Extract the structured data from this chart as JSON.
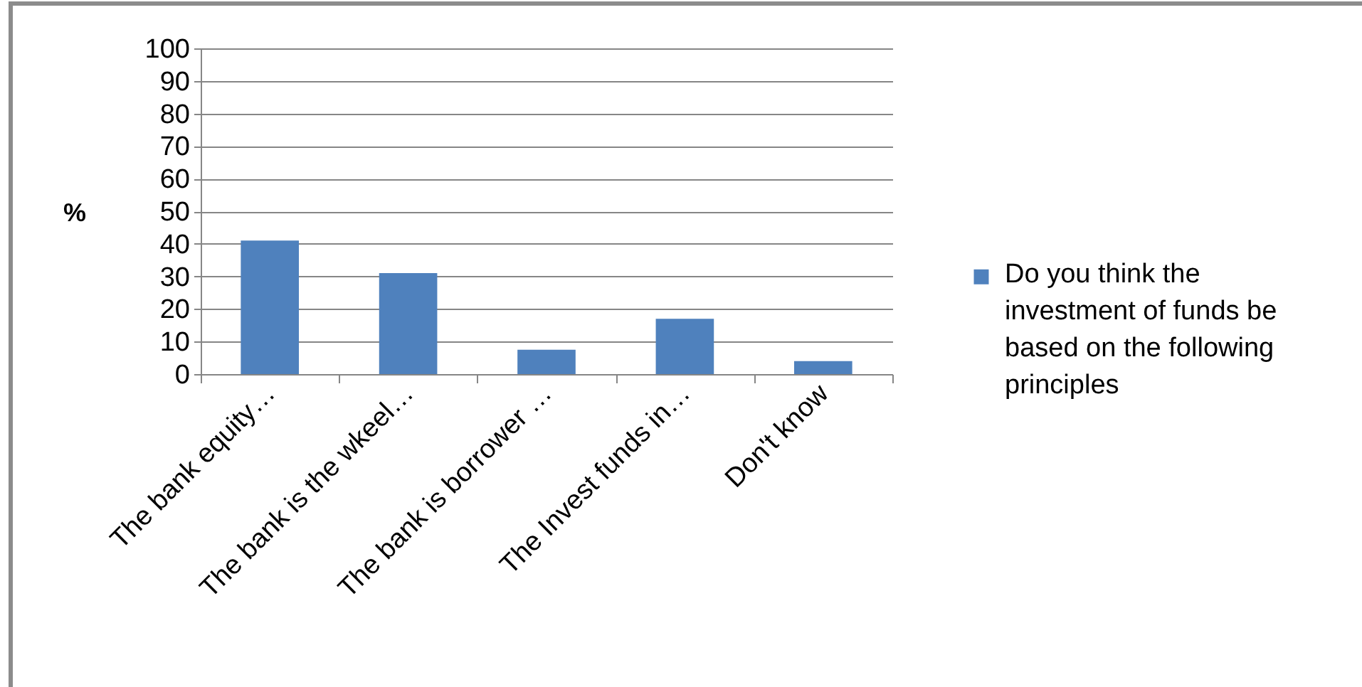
{
  "chart_data": {
    "type": "bar",
    "categories": [
      "The bank equity…",
      "The bank is the wkeel…",
      "The bank is borrower …",
      "The Invest funds in…",
      "Don't know"
    ],
    "series": [
      {
        "name": "Do you think the investment of funds be based on the following principles",
        "color": "#4f81bd",
        "values": [
          41,
          31,
          7.5,
          17,
          4
        ]
      }
    ],
    "ylabel": "%",
    "ylim": [
      0,
      100
    ],
    "yticks": [
      0,
      10,
      20,
      30,
      40,
      50,
      60,
      70,
      80,
      90,
      100
    ],
    "grid": "y",
    "legend": "right"
  }
}
